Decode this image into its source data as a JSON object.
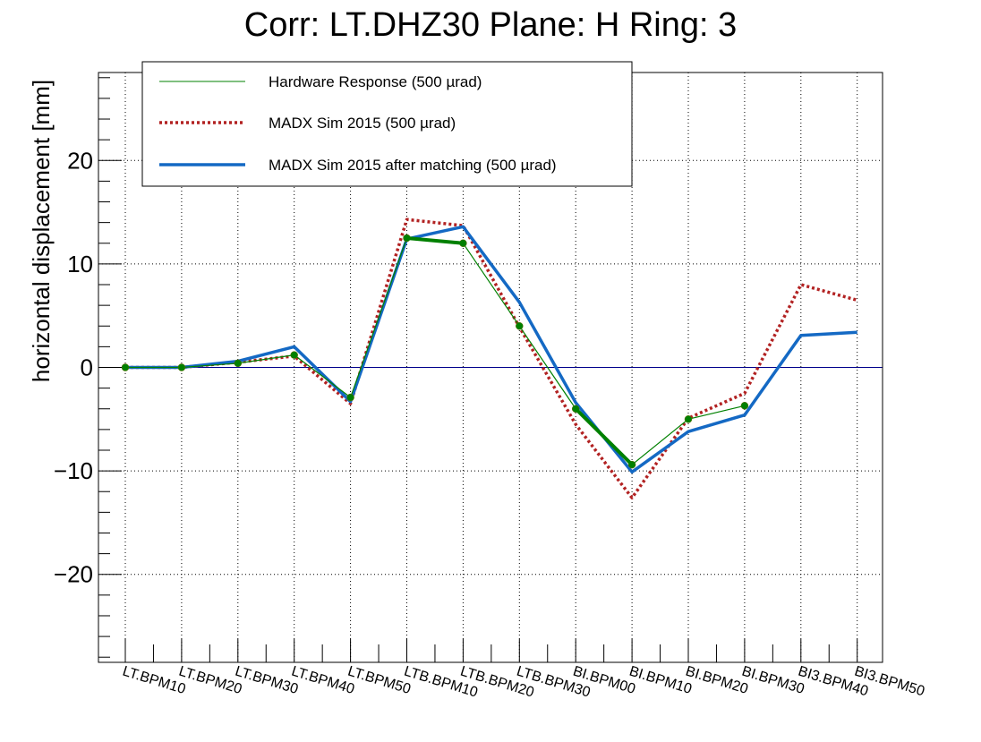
{
  "chart_data": {
    "type": "line",
    "title": "Corr: LT.DHZ30 Plane: H Ring: 3",
    "ylabel": "horizontal displacement [mm]",
    "xlabel": "",
    "ylim": [
      -28.5,
      28.5
    ],
    "yticks": [
      -20,
      -10,
      0,
      10,
      20
    ],
    "grid": true,
    "legend_position": "top-left",
    "categories": [
      "LT.BPM10",
      "LT.BPM20",
      "LT.BPM30",
      "LT.BPM40",
      "LT.BPM50",
      "LTB.BPM10",
      "LTB.BPM20",
      "LTB.BPM30",
      "BI.BPM00",
      "BI.BPM10",
      "BI.BPM20",
      "BI.BPM30",
      "BI3.BPM40",
      "BI3.BPM50"
    ],
    "series": [
      {
        "name": "Hardware Response (500 µrad)",
        "color": "#008000",
        "style": "solid-thin-markers",
        "values": [
          0.0,
          0.0,
          0.4,
          1.2,
          -2.9,
          12.5,
          12.0,
          4.0,
          -4.0,
          -9.4,
          -5.0,
          -3.7,
          null,
          null
        ]
      },
      {
        "name": "MADX Sim 2015 (500 µrad)",
        "color": "#b22222",
        "style": "dotted",
        "values": [
          0.0,
          0.0,
          0.5,
          1.1,
          -3.5,
          14.3,
          13.7,
          3.9,
          -5.5,
          -12.6,
          -4.9,
          -2.5,
          8.0,
          6.5
        ]
      },
      {
        "name": "MADX Sim 2015 after matching (500 µrad)",
        "color": "#1469c4",
        "style": "solid-thick",
        "values": [
          0.0,
          0.0,
          0.6,
          2.0,
          -3.3,
          12.4,
          13.6,
          6.3,
          -3.4,
          -10.1,
          -6.2,
          -4.6,
          3.1,
          3.4
        ]
      }
    ]
  }
}
